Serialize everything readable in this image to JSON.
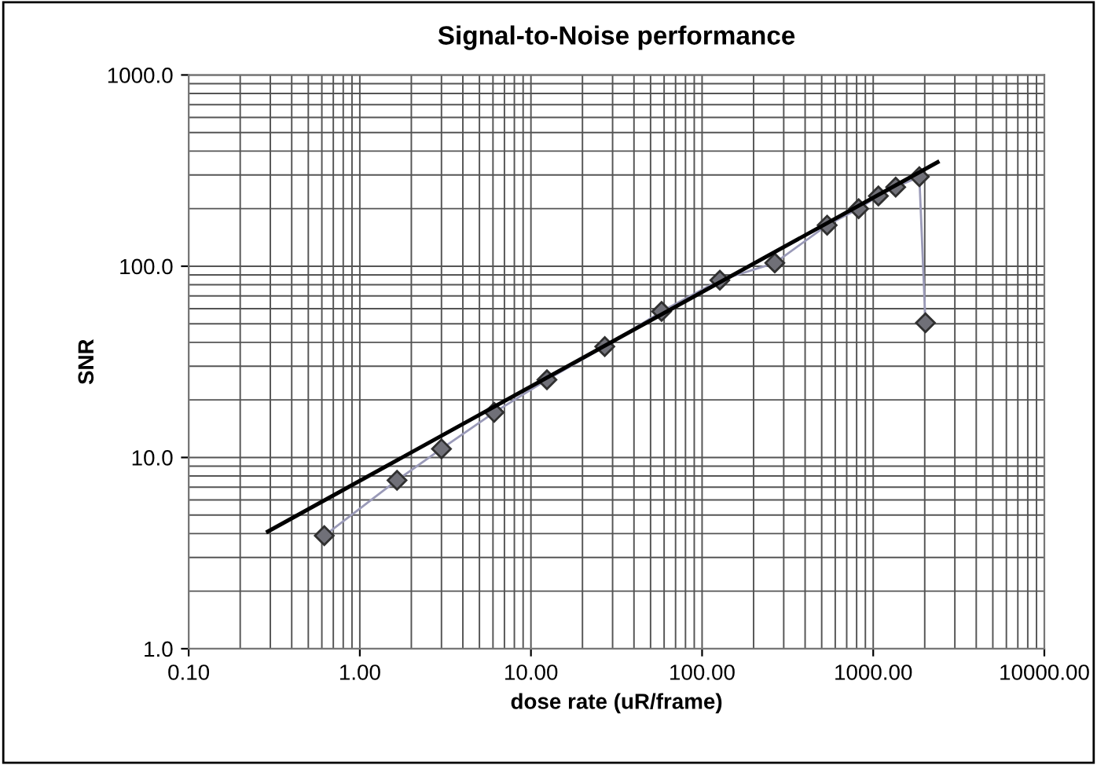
{
  "chart_data": {
    "type": "line",
    "title": "Signal-to-Noise performance",
    "xlabel": "dose rate (uR/frame)",
    "ylabel": "SNR",
    "log": "xy",
    "grid": true,
    "xlim": [
      0.1,
      10000
    ],
    "xticks": [
      {
        "value": 0.1,
        "label": "0.10"
      },
      {
        "value": 1,
        "label": "1.00"
      },
      {
        "value": 10,
        "label": "10.00"
      },
      {
        "value": 100,
        "label": "100.00"
      },
      {
        "value": 1000,
        "label": "1000.00"
      },
      {
        "value": 10000,
        "label": "10000.00"
      }
    ],
    "ylim": [
      1,
      1000
    ],
    "yticks": [
      {
        "value": 1,
        "label": "1.0"
      },
      {
        "value": 10,
        "label": "10.0"
      },
      {
        "value": 100,
        "label": "100.0"
      },
      {
        "value": 1000,
        "label": "1000.0"
      }
    ],
    "series": [
      {
        "color": "#9a9ab8",
        "marker": "diamond",
        "x": [
          0.62,
          1.65,
          3.0,
          6.1,
          12.4,
          27,
          58,
          127,
          266,
          538,
          822,
          1072,
          1353,
          1860,
          2020
        ],
        "values": [
          3.9,
          7.6,
          11.1,
          17.2,
          25.5,
          38,
          58,
          84.5,
          104,
          164,
          200,
          233,
          259,
          294,
          50.6
        ]
      },
      {
        "color": "#000000",
        "marker": "none",
        "x": [
          0.29,
          2380
        ],
        "values": [
          4.1,
          350
        ]
      }
    ]
  }
}
